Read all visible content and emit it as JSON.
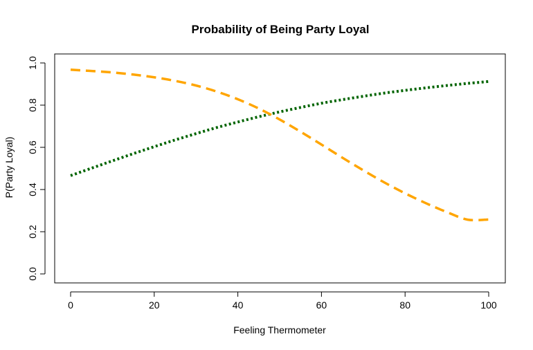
{
  "chart_data": {
    "type": "line",
    "title": "Probability of Being Party Loyal",
    "xlabel": "Feeling Thermometer",
    "ylabel": "P(Party Loyal)",
    "xlim": [
      0,
      100
    ],
    "ylim": [
      0,
      1
    ],
    "x_ticks": [
      "0",
      "20",
      "40",
      "60",
      "80",
      "100"
    ],
    "y_ticks": [
      "0.0",
      "0.2",
      "0.4",
      "0.6",
      "0.8",
      "1.0"
    ],
    "grid": false,
    "legend": "none",
    "x": [
      0,
      5,
      10,
      15,
      20,
      25,
      30,
      35,
      40,
      45,
      50,
      55,
      60,
      65,
      70,
      75,
      80,
      85,
      90,
      95,
      100
    ],
    "series": [
      {
        "style": "dotted",
        "color": "#006400",
        "values": [
          0.466,
          0.501,
          0.536,
          0.57,
          0.603,
          0.635,
          0.665,
          0.694,
          0.72,
          0.745,
          0.768,
          0.789,
          0.809,
          0.826,
          0.842,
          0.857,
          0.87,
          0.882,
          0.893,
          0.903,
          0.912
        ]
      },
      {
        "style": "dashed",
        "color": "#FFA500",
        "values": [
          0.968,
          0.962,
          0.955,
          0.945,
          0.932,
          0.915,
          0.893,
          0.864,
          0.828,
          0.784,
          0.732,
          0.674,
          0.613,
          0.551,
          0.491,
          0.434,
          0.382,
          0.335,
          0.293,
          0.257,
          0.258
        ]
      }
    ]
  }
}
